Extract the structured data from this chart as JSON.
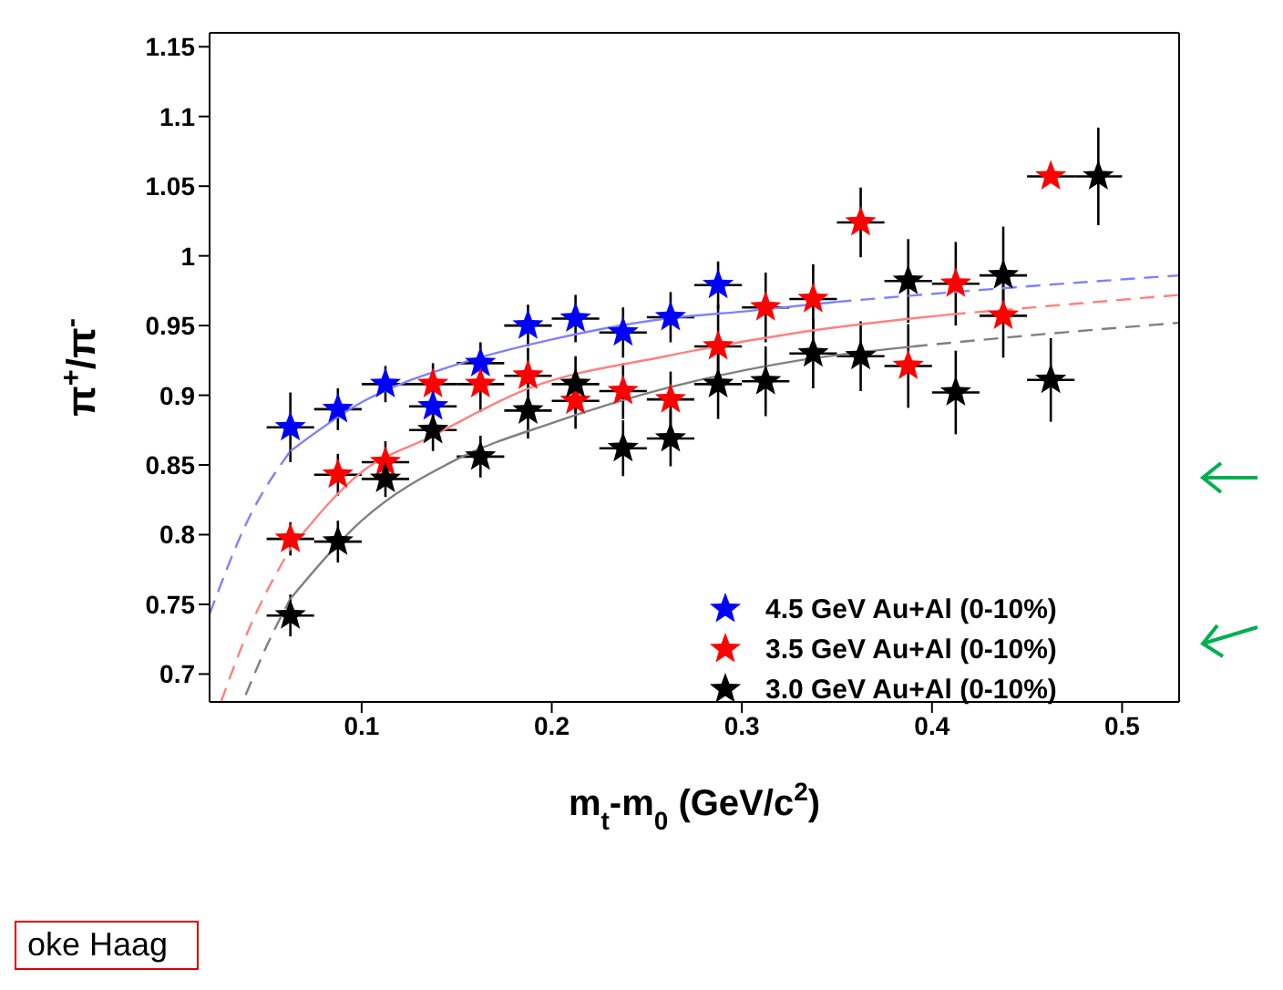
{
  "chart_data": {
    "type": "scatter",
    "xlabel": "m$_{t}$-m$_{0}$ (GeV/c$^{2}$)",
    "ylabel": "π$^{+}$/π$^{-}$",
    "xlim": [
      0.02,
      0.53
    ],
    "xticks": [
      0.1,
      0.2,
      0.3,
      0.4,
      0.5
    ],
    "ylim": [
      0.68,
      1.16
    ],
    "yticks": [
      0.7,
      0.75,
      0.8,
      0.85,
      0.9,
      0.95,
      1,
      1.05,
      1.1,
      1.15
    ],
    "legend": "bottom right",
    "annotations": [
      "oke Haag"
    ],
    "series": [
      {
        "name": "4.5 GeV Au+Al (0-10%)",
        "color": "#0000ff",
        "marker": "star",
        "x": [
          0.0625,
          0.0875,
          0.1125,
          0.1375,
          0.1625,
          0.1875,
          0.2125,
          0.2375,
          0.2625,
          0.2875
        ],
        "values": [
          0.877,
          0.89,
          0.908,
          0.892,
          0.923,
          0.95,
          0.955,
          0.945,
          0.956,
          0.979
        ],
        "errors": [
          0.025,
          0.015,
          0.013,
          0.012,
          0.015,
          0.015,
          0.017,
          0.018,
          0.018,
          0.017
        ],
        "xerrors": [
          0.0125,
          0.0125,
          0.0125,
          0.0125,
          0.0125,
          0.0125,
          0.0125,
          0.0125,
          0.0125,
          0.0125
        ]
      },
      {
        "name": "3.5 GeV Au+Al (0-10%)",
        "color": "#ff0000",
        "marker": "star",
        "x": [
          0.0625,
          0.0875,
          0.1125,
          0.1375,
          0.1625,
          0.1875,
          0.2125,
          0.2375,
          0.2625,
          0.2875,
          0.3125,
          0.3375,
          0.3625,
          0.3875,
          0.4125,
          0.4375,
          0.4625
        ],
        "values": [
          0.797,
          0.843,
          0.852,
          0.908,
          0.908,
          0.914,
          0.896,
          0.903,
          0.897,
          0.935,
          0.963,
          0.969,
          1.024,
          0.921,
          0.98,
          0.957,
          1.057
        ],
        "errors": [
          0.012,
          0.015,
          0.015,
          0.015,
          0.02,
          0.02,
          0.02,
          0.02,
          0.02,
          0.03,
          0.025,
          0.025,
          0.025,
          0.03,
          0.03,
          0.03,
          null
        ],
        "xerrors": [
          0.0125,
          0.0125,
          0.0125,
          0.0125,
          0.0125,
          0.0125,
          0.0125,
          0.0125,
          0.0125,
          0.0125,
          0.0125,
          0.0125,
          0.0125,
          0.0125,
          0.0125,
          0.0125,
          0.0125
        ]
      },
      {
        "name": "3.0 GeV Au+Al (0-10%)",
        "color": "#000000",
        "marker": "star",
        "x": [
          0.0625,
          0.0875,
          0.1125,
          0.1375,
          0.1625,
          0.1875,
          0.2125,
          0.2375,
          0.2625,
          0.2875,
          0.3125,
          0.3375,
          0.3625,
          0.3875,
          0.4125,
          0.4375,
          0.4625,
          0.4875
        ],
        "values": [
          0.742,
          0.795,
          0.84,
          0.875,
          0.856,
          0.889,
          0.908,
          0.862,
          0.869,
          0.908,
          0.91,
          0.93,
          0.928,
          0.982,
          0.902,
          0.986,
          0.911,
          1.057
        ],
        "errors": [
          0.015,
          0.015,
          0.013,
          0.015,
          0.015,
          0.02,
          0.02,
          0.02,
          0.02,
          0.025,
          0.025,
          0.025,
          0.025,
          0.03,
          0.03,
          0.035,
          0.03,
          0.035
        ],
        "xerrors": [
          0.0125,
          0.0125,
          0.0125,
          0.0125,
          0.0125,
          0.0125,
          0.0125,
          0.0125,
          0.0125,
          0.0125,
          0.0125,
          0.0125,
          0.0125,
          0.0125,
          0.0125,
          0.0125,
          0.0125,
          0.0125
        ]
      },
      {
        "type": "line",
        "color": "#8080ff",
        "line_style": "solid",
        "x": [
          0.0625,
          0.1,
          0.15,
          0.2,
          0.26,
          0.3,
          0.35
        ],
        "values": [
          0.86,
          0.895,
          0.922,
          0.94,
          0.955,
          0.96,
          0.967
        ]
      },
      {
        "type": "line",
        "color": "#8080ff",
        "line_style": "dashed",
        "x": [
          0.02,
          0.04,
          0.0625,
          0.2,
          0.35,
          0.43,
          0.53
        ],
        "values": [
          0.743,
          0.81,
          0.86,
          null,
          0.967,
          0.976,
          0.986
        ]
      },
      {
        "type": "line",
        "color": "#ff8080",
        "line_style": "solid",
        "x": [
          0.0625,
          0.1,
          0.136,
          0.188,
          0.26,
          0.33,
          0.41
        ],
        "values": [
          0.79,
          0.845,
          0.87,
          0.905,
          0.928,
          0.945,
          0.958
        ]
      },
      {
        "type": "line",
        "color": "#ff8080",
        "line_style": "dashed",
        "x": [
          0.026,
          0.04,
          0.0625,
          0.2,
          0.41,
          0.47,
          0.53
        ],
        "values": [
          0.68,
          0.73,
          0.79,
          null,
          0.958,
          0.965,
          0.972
        ]
      },
      {
        "type": "line",
        "color": "#808080",
        "line_style": "solid",
        "x": [
          0.0625,
          0.1,
          0.15,
          0.2,
          0.26,
          0.33,
          0.39
        ],
        "values": [
          0.754,
          0.81,
          0.854,
          0.88,
          0.905,
          0.925,
          0.935
        ]
      },
      {
        "type": "line",
        "color": "#808080",
        "line_style": "dashed",
        "x": [
          0.039,
          0.05,
          0.0625,
          0.2,
          0.39,
          0.46,
          0.53
        ],
        "values": [
          0.685,
          0.72,
          0.754,
          null,
          0.935,
          0.944,
          0.952
        ]
      }
    ]
  }
}
